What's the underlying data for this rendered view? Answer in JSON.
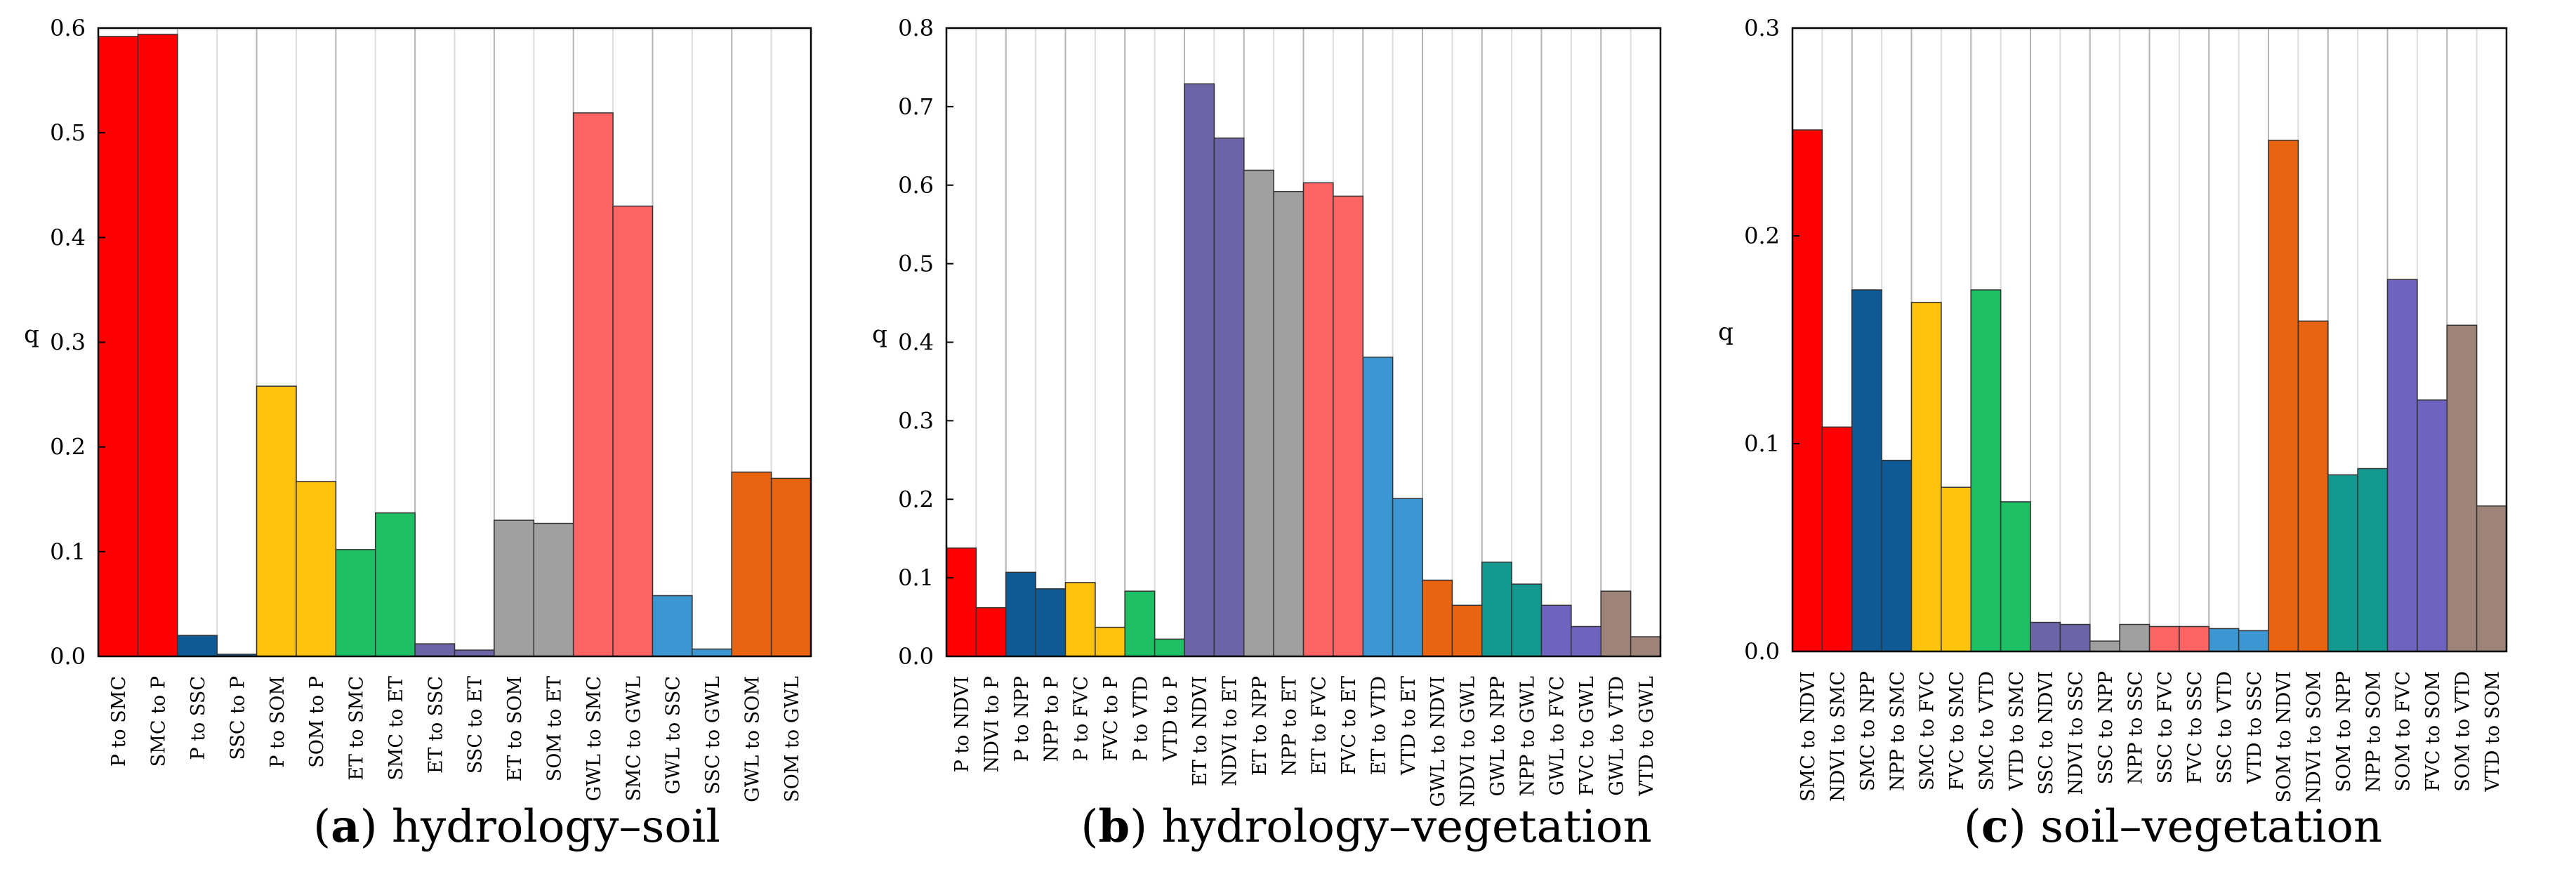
{
  "chart_data": [
    {
      "type": "bar",
      "ylabel": "q",
      "ylim": [
        0,
        0.6
      ],
      "yticks": [
        "0.0",
        "0.1",
        "0.2",
        "0.3",
        "0.4",
        "0.5",
        "0.6"
      ],
      "caption_letter": "a",
      "caption_text": " hydrology–soil",
      "categories": [
        "P to SMC",
        "SMC to P",
        "P to SSC",
        "SSC to P",
        "P to SOM",
        "SOM to P",
        "ET to SMC",
        "SMC to ET",
        "ET to SSC",
        "SSC to ET",
        "ET to SOM",
        "SOM to ET",
        "GWL to SMC",
        "SMC to GWL",
        "GWL to SSC",
        "SSC to GWL",
        "GWL to SOM",
        "SOM to GWL"
      ],
      "values": [
        0.592,
        0.594,
        0.02,
        0.002,
        0.258,
        0.167,
        0.102,
        0.137,
        0.012,
        0.006,
        0.13,
        0.127,
        0.519,
        0.43,
        0.058,
        0.007,
        0.176,
        0.17
      ],
      "colors": [
        "#ff0000",
        "#ff0000",
        "#0e5a96",
        "#0e5a96",
        "#ffc20e",
        "#ffc20e",
        "#1fc064",
        "#1fc064",
        "#6b64a6",
        "#6b64a6",
        "#a0a0a0",
        "#a0a0a0",
        "#ff6464",
        "#ff6464",
        "#3c96d2",
        "#3c96d2",
        "#e86410",
        "#e86410"
      ]
    },
    {
      "type": "bar",
      "ylabel": "q",
      "ylim": [
        0,
        0.8
      ],
      "yticks": [
        "0.0",
        "0.1",
        "0.2",
        "0.3",
        "0.4",
        "0.5",
        "0.6",
        "0.7",
        "0.8"
      ],
      "caption_letter": "b",
      "caption_text": " hydrology–vegetation",
      "categories": [
        "P to NDVI",
        "NDVI to P",
        "P to NPP",
        "NPP to P",
        "P to FVC",
        "FVC to P",
        "P to VTD",
        "VTD to P",
        "ET to NDVI",
        "NDVI to ET",
        "ET to NPP",
        "NPP to ET",
        "ET to FVC",
        "FVC to ET",
        "ET to VTD",
        "VTD to ET",
        "GWL to NDVI",
        "NDVI to GWL",
        "GWL to NPP",
        "NPP to GWL",
        "GWL to FVC",
        "FVC to GWL",
        "GWL to VTD",
        "VTD to GWL"
      ],
      "values": [
        0.138,
        0.062,
        0.107,
        0.086,
        0.094,
        0.037,
        0.083,
        0.022,
        0.729,
        0.66,
        0.619,
        0.592,
        0.603,
        0.586,
        0.381,
        0.201,
        0.097,
        0.065,
        0.12,
        0.092,
        0.065,
        0.038,
        0.083,
        0.025
      ],
      "colors": [
        "#ff0000",
        "#ff0000",
        "#0e5a96",
        "#0e5a96",
        "#ffc20e",
        "#ffc20e",
        "#1fc064",
        "#1fc064",
        "#6b64a6",
        "#6b64a6",
        "#a0a0a0",
        "#a0a0a0",
        "#ff6464",
        "#ff6464",
        "#3c96d2",
        "#3c96d2",
        "#e86410",
        "#e86410",
        "#13998f",
        "#13998f",
        "#6e64c0",
        "#6e64c0",
        "#9e8478",
        "#9e8478"
      ]
    },
    {
      "type": "bar",
      "ylabel": "q",
      "ylim": [
        0,
        0.3
      ],
      "yticks": [
        "0.0",
        "0.1",
        "0.2",
        "0.3"
      ],
      "caption_letter": "c",
      "caption_text": " soil–vegetation",
      "categories": [
        "SMC to NDVI",
        "NDVI to SMC",
        "SMC to NPP",
        "NPP to SMC",
        "SMC to FVC",
        "FVC to SMC",
        "SMC to VTD",
        "VTD to SMC",
        "SSC to NDVI",
        "NDVI to SSC",
        "SSC to NPP",
        "NPP to SSC",
        "SSC to FVC",
        "FVC to SSC",
        "SSC to VTD",
        "VTD to SSC",
        "SOM to NDVI",
        "NDVI to SOM",
        "SOM to NPP",
        "NPP to SOM",
        "SOM to FVC",
        "FVC to SOM",
        "SOM to VTD",
        "VTD to SOM"
      ],
      "values": [
        0.251,
        0.108,
        0.174,
        0.092,
        0.168,
        0.079,
        0.174,
        0.072,
        0.014,
        0.013,
        0.005,
        0.013,
        0.012,
        0.012,
        0.011,
        0.01,
        0.246,
        0.159,
        0.085,
        0.088,
        0.179,
        0.121,
        0.157,
        0.07
      ],
      "colors": [
        "#ff0000",
        "#ff0000",
        "#0e5a96",
        "#0e5a96",
        "#ffc20e",
        "#ffc20e",
        "#1fc064",
        "#1fc064",
        "#6b64a6",
        "#6b64a6",
        "#a0a0a0",
        "#a0a0a0",
        "#ff6464",
        "#ff6464",
        "#3c96d2",
        "#3c96d2",
        "#e86410",
        "#e86410",
        "#13998f",
        "#13998f",
        "#6e64c0",
        "#6e64c0",
        "#9e8478",
        "#9e8478"
      ]
    }
  ]
}
